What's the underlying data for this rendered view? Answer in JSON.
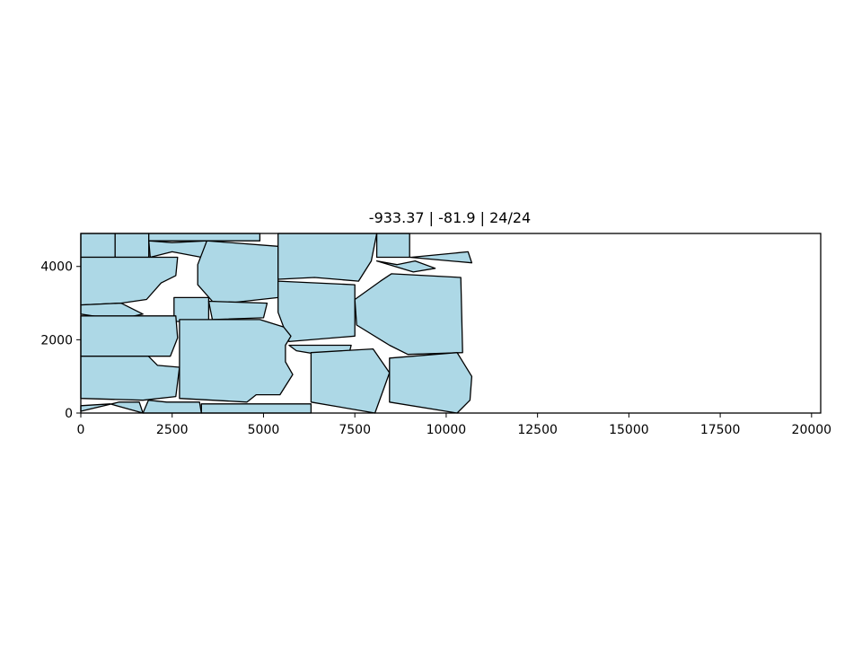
{
  "chart_data": {
    "type": "other",
    "title": "-933.37 | -81.9 | 24/24",
    "xlabel": "",
    "ylabel": "",
    "xlim": [
      0,
      20250
    ],
    "ylim": [
      0,
      4900
    ],
    "x_ticks": [
      0,
      2500,
      5000,
      7500,
      10000,
      12500,
      15000,
      17500,
      20000
    ],
    "x_tick_labels": [
      "0",
      "2500",
      "5000",
      "7500",
      "10000",
      "12500",
      "15000",
      "17500",
      "20000"
    ],
    "y_ticks": [
      0,
      2000,
      4000
    ],
    "y_tick_labels": [
      "0",
      "2000",
      "4000"
    ],
    "grid": false,
    "fill_color": "#add8e6",
    "edge_color": "#000000",
    "polygons": [
      [
        [
          0,
          4900
        ],
        [
          940,
          4900
        ],
        [
          940,
          4250
        ],
        [
          0,
          4250
        ]
      ],
      [
        [
          940,
          4900
        ],
        [
          1860,
          4900
        ],
        [
          1860,
          4250
        ],
        [
          940,
          4250
        ]
      ],
      [
        [
          1860,
          4900
        ],
        [
          4900,
          4900
        ],
        [
          4900,
          4700
        ],
        [
          1860,
          4700
        ]
      ],
      [
        [
          1860,
          4700
        ],
        [
          2500,
          4650
        ],
        [
          3450,
          4700
        ],
        [
          3300,
          4250
        ],
        [
          2500,
          4400
        ],
        [
          1900,
          4250
        ]
      ],
      [
        [
          0,
          4250
        ],
        [
          2650,
          4250
        ],
        [
          2600,
          3750
        ],
        [
          2200,
          3550
        ],
        [
          1800,
          3100
        ],
        [
          1100,
          3000
        ],
        [
          0,
          2950
        ]
      ],
      [
        [
          3450,
          4700
        ],
        [
          5400,
          4550
        ],
        [
          5400,
          3150
        ],
        [
          4000,
          3000
        ],
        [
          3600,
          3050
        ],
        [
          3200,
          3500
        ],
        [
          3200,
          4050
        ]
      ],
      [
        [
          5400,
          4900
        ],
        [
          8100,
          4900
        ],
        [
          7950,
          4150
        ],
        [
          7600,
          3600
        ],
        [
          6400,
          3700
        ],
        [
          5400,
          3650
        ]
      ],
      [
        [
          8100,
          4900
        ],
        [
          9000,
          4900
        ],
        [
          9000,
          4250
        ],
        [
          8100,
          4250
        ]
      ],
      [
        [
          8100,
          4150
        ],
        [
          9100,
          3850
        ],
        [
          9700,
          3950
        ],
        [
          9150,
          4150
        ],
        [
          8650,
          4050
        ]
      ],
      [
        [
          9050,
          4250
        ],
        [
          10600,
          4400
        ],
        [
          10700,
          4100
        ],
        [
          9000,
          4250
        ]
      ],
      [
        [
          0,
          2950
        ],
        [
          1100,
          3000
        ],
        [
          1700,
          2700
        ],
        [
          1000,
          2550
        ],
        [
          0,
          2700
        ]
      ],
      [
        [
          2550,
          3150
        ],
        [
          3500,
          3150
        ],
        [
          3500,
          2500
        ],
        [
          2550,
          2500
        ]
      ],
      [
        [
          3500,
          3050
        ],
        [
          5100,
          3000
        ],
        [
          5000,
          2600
        ],
        [
          3600,
          2550
        ]
      ],
      [
        [
          5400,
          3600
        ],
        [
          7500,
          3500
        ],
        [
          7500,
          2100
        ],
        [
          5700,
          1950
        ],
        [
          5400,
          2750
        ]
      ],
      [
        [
          7500,
          3100
        ],
        [
          8200,
          3600
        ],
        [
          8500,
          3800
        ],
        [
          10400,
          3700
        ],
        [
          10450,
          1650
        ],
        [
          8950,
          1600
        ],
        [
          8450,
          1850
        ],
        [
          7550,
          2400
        ]
      ],
      [
        [
          0,
          2650
        ],
        [
          2600,
          2650
        ],
        [
          2650,
          2050
        ],
        [
          2450,
          1550
        ],
        [
          0,
          1550
        ]
      ],
      [
        [
          2700,
          2550
        ],
        [
          4900,
          2550
        ],
        [
          5550,
          2350
        ],
        [
          5750,
          2100
        ],
        [
          5600,
          1850
        ],
        [
          5600,
          1400
        ],
        [
          5800,
          1050
        ],
        [
          5450,
          500
        ],
        [
          4800,
          500
        ],
        [
          4550,
          300
        ],
        [
          2700,
          400
        ]
      ],
      [
        [
          5700,
          1850
        ],
        [
          7400,
          1850
        ],
        [
          7350,
          1650
        ],
        [
          6800,
          1550
        ],
        [
          5900,
          1700
        ]
      ],
      [
        [
          6300,
          1650
        ],
        [
          8000,
          1750
        ],
        [
          8450,
          1100
        ],
        [
          8050,
          0
        ],
        [
          6300,
          300
        ]
      ],
      [
        [
          8450,
          1500
        ],
        [
          10300,
          1650
        ],
        [
          10700,
          1000
        ],
        [
          10650,
          350
        ],
        [
          10300,
          0
        ],
        [
          8450,
          300
        ]
      ],
      [
        [
          0,
          1550
        ],
        [
          1850,
          1550
        ],
        [
          2100,
          1300
        ],
        [
          2700,
          1250
        ],
        [
          2600,
          450
        ],
        [
          1700,
          350
        ],
        [
          0,
          400
        ]
      ],
      [
        [
          0,
          200
        ],
        [
          800,
          250
        ],
        [
          1700,
          0
        ],
        [
          1600,
          300
        ],
        [
          1050,
          300
        ],
        [
          0,
          50
        ]
      ],
      [
        [
          1700,
          0
        ],
        [
          3300,
          0
        ],
        [
          3250,
          300
        ],
        [
          2350,
          300
        ],
        [
          1850,
          350
        ]
      ],
      [
        [
          3300,
          0
        ],
        [
          6300,
          0
        ],
        [
          6300,
          250
        ],
        [
          3300,
          250
        ]
      ]
    ]
  }
}
